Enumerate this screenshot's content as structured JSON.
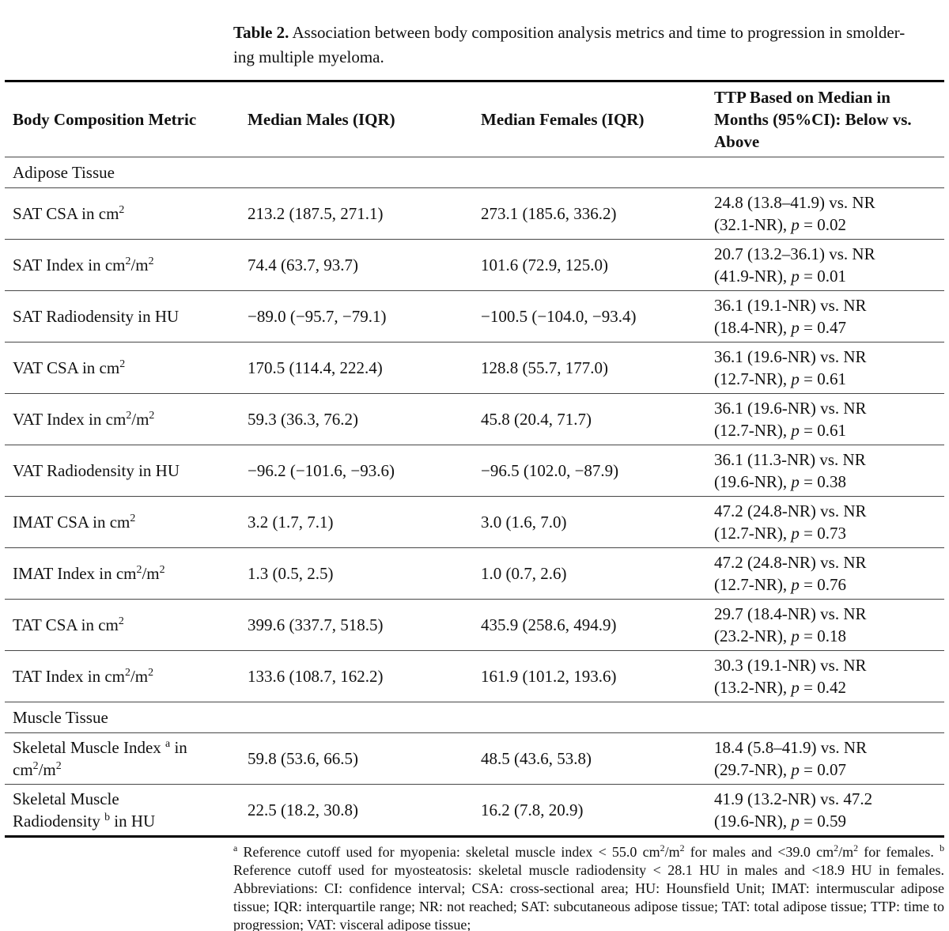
{
  "page": {
    "background": "#ffffff",
    "text_color": "#111111",
    "rule_thick_color": "#000000",
    "rule_thin_color": "#474747"
  },
  "caption": {
    "label": "Table 2.",
    "text_html": " Association between body composition analysis metrics and time to progression in smolder-<br>ing multiple myeloma."
  },
  "table": {
    "columns": [
      {
        "label_html": "Body Composition Metric"
      },
      {
        "label_html": "Median Males (IQR)"
      },
      {
        "label_html": "Median Females (IQR)"
      },
      {
        "label_html": "TTP Based on Median in<br>Months (95%CI): Below vs.<br>Above"
      }
    ],
    "sections": [
      {
        "title": "Adipose Tissue",
        "rows": [
          {
            "metric_html": "SAT CSA in cm<sup>2</sup>",
            "males": "213.2 (187.5, 271.1)",
            "females": "273.1 (185.6, 336.2)",
            "ttp_html": "24.8 (13.8–41.9) vs. NR<br>(32.1-NR), <i>p</i> = 0.02"
          },
          {
            "metric_html": "SAT Index in cm<sup>2</sup>/m<sup>2</sup>",
            "males": "74.4 (63.7, 93.7)",
            "females": "101.6 (72.9, 125.0)",
            "ttp_html": "20.7 (13.2–36.1) vs. NR<br>(41.9-NR), <i>p</i> = 0.01"
          },
          {
            "metric_html": "SAT Radiodensity in HU",
            "males": "−89.0 (−95.7, −79.1)",
            "females": "−100.5 (−104.0, −93.4)",
            "ttp_html": "36.1 (19.1-NR) vs. NR<br>(18.4-NR), <i>p</i> = 0.47"
          },
          {
            "metric_html": "VAT CSA in cm<sup>2</sup>",
            "males": "170.5 (114.4, 222.4)",
            "females": "128.8 (55.7, 177.0)",
            "ttp_html": "36.1 (19.6-NR) vs. NR<br>(12.7-NR), <i>p</i> = 0.61"
          },
          {
            "metric_html": "VAT Index in cm<sup>2</sup>/m<sup>2</sup>",
            "males": "59.3 (36.3, 76.2)",
            "females": "45.8 (20.4, 71.7)",
            "ttp_html": "36.1 (19.6-NR) vs. NR<br>(12.7-NR), <i>p</i> = 0.61"
          },
          {
            "metric_html": "VAT Radiodensity in HU",
            "males": "−96.2 (−101.6, −93.6)",
            "females": "−96.5 (102.0, −87.9)",
            "ttp_html": "36.1 (11.3-NR) vs. NR<br>(19.6-NR), <i>p</i> = 0.38"
          },
          {
            "metric_html": "IMAT CSA in cm<sup>2</sup>",
            "males": "3.2 (1.7, 7.1)",
            "females": "3.0 (1.6, 7.0)",
            "ttp_html": "47.2 (24.8-NR) vs. NR<br>(12.7-NR), <i>p</i> = 0.73"
          },
          {
            "metric_html": "IMAT Index in cm<sup>2</sup>/m<sup>2</sup>",
            "males": "1.3 (0.5, 2.5)",
            "females": "1.0 (0.7, 2.6)",
            "ttp_html": "47.2 (24.8-NR) vs. NR<br>(12.7-NR), <i>p</i> = 0.76"
          },
          {
            "metric_html": "TAT CSA in cm<sup>2</sup>",
            "males": "399.6 (337.7, 518.5)",
            "females": "435.9 (258.6, 494.9)",
            "ttp_html": "29.7 (18.4-NR) vs. NR<br>(23.2-NR), <i>p</i> = 0.18"
          },
          {
            "metric_html": "TAT Index in cm<sup>2</sup>/m<sup>2</sup>",
            "males": "133.6 (108.7, 162.2)",
            "females": "161.9 (101.2, 193.6)",
            "ttp_html": "30.3 (19.1-NR) vs. NR<br>(13.2-NR), <i>p</i> = 0.42"
          }
        ]
      },
      {
        "title": "Muscle Tissue",
        "rows": [
          {
            "metric_html": "Skeletal Muscle Index <sup>a</sup> in<br>cm<sup>2</sup>/m<sup>2</sup>",
            "males": "59.8 (53.6, 66.5)",
            "females": "48.5 (43.6, 53.8)",
            "ttp_html": "18.4 (5.8–41.9) vs. NR<br>(29.7-NR), <i>p</i> = 0.07"
          },
          {
            "metric_html": "Skeletal Muscle<br>Radiodensity <sup>b</sup> in HU",
            "males": "22.5 (18.2, 30.8)",
            "females": "16.2 (7.8, 20.9)",
            "ttp_html": "41.9 (13.2-NR) vs. 47.2<br>(19.6-NR), <i>p</i> = 0.59"
          }
        ]
      }
    ]
  },
  "footnote_html": "<sup>a</sup> Reference cutoff used for myopenia: skeletal muscle index &lt; 55.0 cm<sup>2</sup>/m<sup>2</sup> for males and &lt;39.0 cm<sup>2</sup>/m<sup>2</sup> for females. <sup>b</sup> Reference cutoff used for myosteatosis: skeletal muscle radiodensity &lt; 28.1 HU in males and &lt;18.9 HU in females. Abbreviations: CI: confidence interval; CSA: cross-sectional area; HU: Hounsfield Unit; IMAT: intermuscular adipose tissue; IQR: interquartile range; NR: not reached; SAT: subcutaneous adipose tissue; TAT: total adipose tissue; TTP: time to progression; VAT: visceral adipose tissue;"
}
